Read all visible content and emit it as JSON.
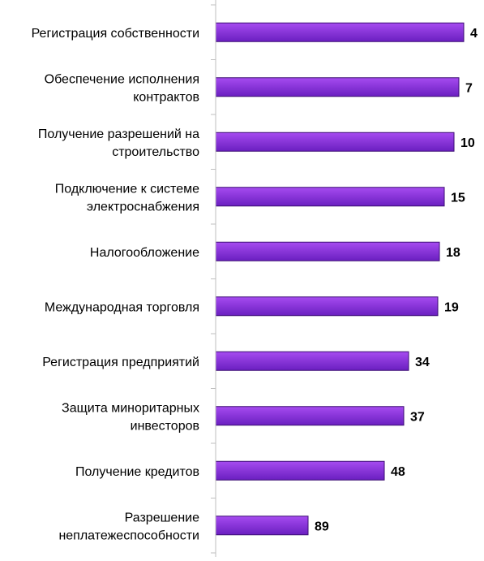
{
  "chart_data": {
    "type": "bar",
    "orientation": "horizontal",
    "categories": [
      "Регистрация собственности",
      "Обеспечение исполнения контрактов",
      "Получение разрешений на строительство",
      "Подключение к системе электроснабжения",
      "Налогообложение",
      "Международная торговля",
      "Регистрация предприятий",
      "Защита миноритарных инвесторов",
      "Получение кредитов",
      "Разрешение неплатежеспособности"
    ],
    "category_lines": [
      [
        "Регистрация собственности"
      ],
      [
        "Обеспечение исполнения",
        "контрактов"
      ],
      [
        "Получение разрешений на",
        "строительство"
      ],
      [
        "Подключение к системе",
        "электроснабжения"
      ],
      [
        "Налогообложение"
      ],
      [
        "Международная торговля"
      ],
      [
        "Регистрация предприятий"
      ],
      [
        "Защита миноритарных",
        "инвесторов"
      ],
      [
        "Получение кредитов"
      ],
      [
        "Разрешение",
        "неплатежеспособности"
      ]
    ],
    "values": [
      4,
      7,
      10,
      15,
      18,
      19,
      34,
      37,
      48,
      89
    ],
    "bar_lengths": [
      153,
      150,
      147,
      141,
      138,
      137,
      119,
      116,
      104,
      57
    ],
    "bar_length_unit": "relative",
    "colors": {
      "bar_fill_top": "#a64bf0",
      "bar_fill_bottom": "#6a1fc0",
      "bar_stroke": "#3b0d73",
      "axis": "#bfbfbf",
      "label_text": "#000000"
    },
    "title": "",
    "xlabel": "",
    "ylabel": "",
    "grid": false,
    "legend": false
  }
}
